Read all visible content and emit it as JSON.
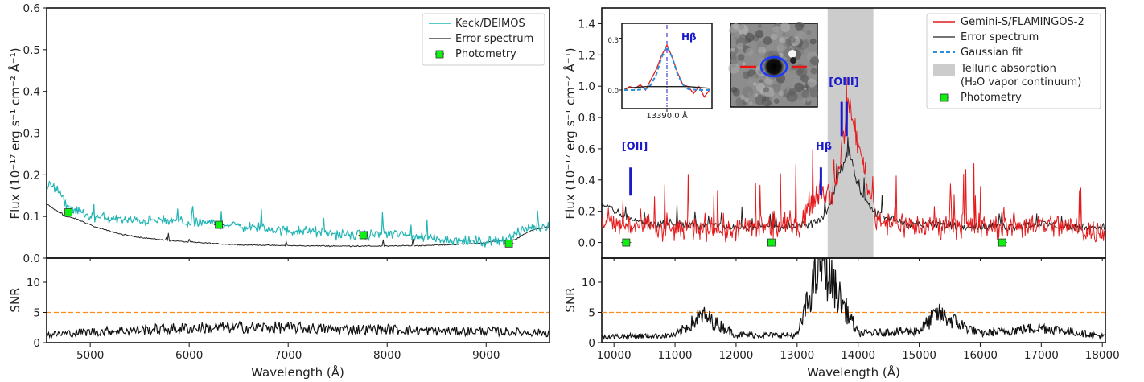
{
  "chart_data": [
    {
      "type": "line",
      "panel": "left-spectrum",
      "xlabel": "Wavelength (Å)",
      "ylabel": "Flux (10⁻¹⁷ erg s⁻¹ cm⁻² Å⁻¹)",
      "xlim": [
        4560,
        9640
      ],
      "ylim": [
        0,
        0.6
      ],
      "xticks": [
        "5000",
        "6000",
        "7000",
        "8000",
        "9000"
      ],
      "yticks": [
        "0.0",
        "0.1",
        "0.2",
        "0.3",
        "0.4",
        "0.5",
        "0.6"
      ],
      "legend": {
        "position": "top-right",
        "entries": [
          "Keck/DEIMOS",
          "Error spectrum",
          "Photometry"
        ]
      },
      "series": [
        {
          "name": "Keck/DEIMOS",
          "color": "#22b5b5",
          "x": [
            4560,
            4600,
            4650,
            4700,
            4750,
            4800,
            4900,
            5000,
            5200,
            5400,
            5600,
            5800,
            6000,
            6200,
            6400,
            6600,
            6800,
            7000,
            7200,
            7400,
            7600,
            7800,
            8000,
            8200,
            8400,
            8600,
            8800,
            9000,
            9200,
            9400,
            9640
          ],
          "y": [
            0.16,
            0.18,
            0.17,
            0.15,
            0.13,
            0.12,
            0.11,
            0.1,
            0.095,
            0.09,
            0.09,
            0.09,
            0.085,
            0.085,
            0.08,
            0.075,
            0.07,
            0.065,
            0.065,
            0.06,
            0.055,
            0.055,
            0.06,
            0.055,
            0.05,
            0.045,
            0.04,
            0.04,
            0.045,
            0.07,
            0.08
          ]
        },
        {
          "name": "Error spectrum",
          "color": "#222222",
          "x": [
            4560,
            4650,
            4750,
            4850,
            4950,
            5050,
            5150,
            5300,
            5500,
            5800,
            6100,
            6500,
            7000,
            7500,
            8000,
            8300,
            8600,
            8900,
            9100,
            9300,
            9400,
            9500,
            9640
          ],
          "y": [
            0.13,
            0.115,
            0.1,
            0.095,
            0.085,
            0.075,
            0.068,
            0.058,
            0.05,
            0.042,
            0.037,
            0.032,
            0.03,
            0.029,
            0.029,
            0.03,
            0.032,
            0.035,
            0.04,
            0.045,
            0.06,
            0.07,
            0.075
          ]
        },
        {
          "name": "Photometry",
          "color": "#11ee11",
          "x": [
            4780,
            6300,
            7760,
            9230
          ],
          "y": [
            0.11,
            0.08,
            0.055,
            0.035
          ]
        }
      ]
    },
    {
      "type": "line",
      "panel": "left-snr",
      "xlabel": "Wavelength (Å)",
      "ylabel": "SNR",
      "xlim": [
        4560,
        9640
      ],
      "ylim": [
        0,
        14
      ],
      "yticks": [
        "0",
        "5",
        "10"
      ],
      "threshold": 5,
      "threshold_color": "#ff8c1a",
      "series": [
        {
          "name": "",
          "color": "#111111",
          "x": [
            4560,
            5000,
            5500,
            6000,
            6500,
            7000,
            7500,
            8000,
            8500,
            9000,
            9640
          ],
          "y": [
            1.3,
            1.8,
            2.1,
            2.4,
            2.5,
            2.5,
            2.2,
            2.2,
            1.9,
            1.9,
            1.6
          ]
        }
      ]
    },
    {
      "type": "line",
      "panel": "right-spectrum",
      "xlabel": "Wavelength (Å)",
      "ylabel": "Flux (10⁻¹⁷ erg s⁻¹ cm⁻² Å⁻¹)",
      "xlim": [
        9800,
        18050
      ],
      "ylim": [
        -0.1,
        1.5
      ],
      "xticks": [
        "10000",
        "11000",
        "12000",
        "13000",
        "14000",
        "15000",
        "16000",
        "17000",
        "18000"
      ],
      "yticks": [
        "0.0",
        "0.2",
        "0.4",
        "0.6",
        "0.8",
        "1.0",
        "1.2",
        "1.4"
      ],
      "telluric_band": [
        13500,
        14250
      ],
      "legend": {
        "position": "top-right",
        "entries": [
          "Gemini-S/FLAMINGOS-2",
          "Error spectrum",
          "Gaussian fit",
          "Telluric absorption",
          "(H₂O vapor continuum)",
          "Photometry"
        ]
      },
      "annotations": [
        {
          "label": "[OII]",
          "x": 10270,
          "y0": 0.3,
          "y1": 0.48
        },
        {
          "label": "Hβ",
          "x": 13390,
          "y0": 0.3,
          "y1": 0.48
        },
        {
          "label": "[OIII]",
          "x": 13730,
          "y0": 0.68,
          "y1": 0.9
        },
        {
          "label": "",
          "x": 13810,
          "y0": 0.68,
          "y1": 0.9
        }
      ],
      "series": [
        {
          "name": "Gemini-S/FLAMINGOS-2",
          "color": "#e41a1c",
          "x": [
            9800,
            10500,
            11000,
            11500,
            12000,
            12500,
            13000,
            13390,
            13600,
            13850,
            14300,
            15000,
            15500,
            16000,
            16500,
            17000,
            17500,
            18050
          ],
          "y": [
            0.12,
            0.1,
            0.08,
            0.1,
            0.08,
            0.1,
            0.1,
            0.35,
            0.3,
            0.88,
            0.15,
            0.1,
            0.12,
            0.1,
            0.1,
            0.12,
            0.1,
            0.05
          ]
        },
        {
          "name": "Error spectrum",
          "color": "#222222",
          "x": [
            9800,
            10000,
            10300,
            10600,
            11000,
            11500,
            12000,
            12500,
            13000,
            13300,
            13500,
            13700,
            13850,
            14000,
            14300,
            14800,
            15500,
            16000,
            16500,
            17000,
            17500,
            18050
          ],
          "y": [
            0.25,
            0.2,
            0.15,
            0.12,
            0.12,
            0.11,
            0.1,
            0.1,
            0.1,
            0.12,
            0.2,
            0.45,
            0.58,
            0.35,
            0.18,
            0.12,
            0.11,
            0.1,
            0.1,
            0.12,
            0.1,
            0.1
          ]
        },
        {
          "name": "Photometry",
          "color": "#11ee11",
          "x": [
            10200,
            12580,
            16360
          ],
          "y": [
            0.0,
            0.0,
            0.0
          ]
        }
      ]
    },
    {
      "type": "line",
      "panel": "right-snr",
      "xlabel": "Wavelength (Å)",
      "ylabel": "SNR",
      "xlim": [
        9800,
        18050
      ],
      "ylim": [
        0,
        14
      ],
      "yticks": [
        "0",
        "5",
        "10"
      ],
      "threshold": 5,
      "threshold_color": "#ff8c1a",
      "peak": {
        "x": 13390,
        "y": 13.5
      },
      "series": [
        {
          "name": "",
          "color": "#111111",
          "x": [
            9800,
            11000,
            11450,
            12000,
            13000,
            13390,
            14000,
            15000,
            15300,
            16000,
            17000,
            18050
          ],
          "y": [
            1.0,
            1.2,
            4.5,
            1.3,
            1.2,
            13.5,
            1.5,
            2.0,
            4.8,
            1.5,
            2.5,
            1.0
          ]
        }
      ]
    },
    {
      "type": "line",
      "panel": "inset",
      "xlabel": "13390.0 Å",
      "ylabel": "",
      "yticks": [
        "0.0",
        "0.3"
      ],
      "label": "Hβ",
      "series": [
        {
          "name": "Data",
          "color": "#e41a1c",
          "x": [
            -8,
            -7,
            -6,
            -5,
            -4,
            -3,
            -2,
            -1,
            0,
            1,
            2,
            3,
            4,
            5,
            6,
            7,
            8
          ],
          "y": [
            0.0,
            0.02,
            0.01,
            0.03,
            0.0,
            0.06,
            0.12,
            0.2,
            0.26,
            0.19,
            0.1,
            0.03,
            0.02,
            -0.02,
            0.02,
            -0.04,
            0.0
          ]
        },
        {
          "name": "Gaussian fit",
          "color": "#2b8fe0",
          "x": [
            -8,
            -6,
            -4,
            -3,
            -2,
            -1,
            0,
            1,
            2,
            3,
            4,
            6,
            8
          ],
          "y": [
            0.0,
            0.0,
            0.005,
            0.03,
            0.09,
            0.19,
            0.25,
            0.19,
            0.09,
            0.03,
            0.005,
            0.0,
            0.0
          ]
        },
        {
          "name": "Error spectrum",
          "color": "#222222",
          "x": [
            -8,
            -4,
            0,
            4,
            8
          ],
          "y": [
            0.01,
            0.02,
            0.02,
            0.02,
            0.01
          ]
        }
      ]
    }
  ]
}
